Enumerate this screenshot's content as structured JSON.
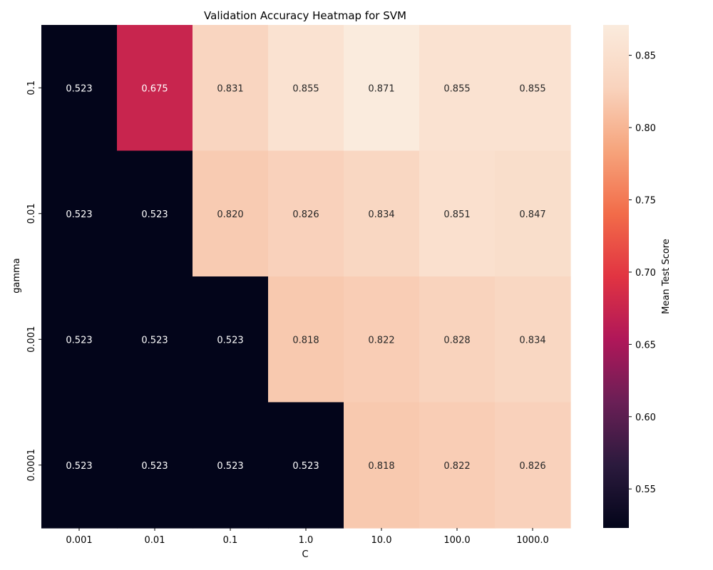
{
  "chart_data": {
    "type": "heatmap",
    "title": "Validation Accuracy Heatmap for SVM",
    "xlabel": "C",
    "ylabel": "gamma",
    "x_categories": [
      "0.001",
      "0.01",
      "0.1",
      "1.0",
      "10.0",
      "100.0",
      "1000.0"
    ],
    "y_categories": [
      "0.1",
      "0.01",
      "0.001",
      "0.0001"
    ],
    "values": [
      [
        0.523,
        0.675,
        0.831,
        0.855,
        0.871,
        0.855,
        0.855
      ],
      [
        0.523,
        0.523,
        0.82,
        0.826,
        0.834,
        0.851,
        0.847
      ],
      [
        0.523,
        0.523,
        0.523,
        0.818,
        0.822,
        0.828,
        0.834
      ],
      [
        0.523,
        0.523,
        0.523,
        0.523,
        0.818,
        0.822,
        0.826
      ]
    ],
    "value_labels": [
      [
        "0.523",
        "0.675",
        "0.831",
        "0.855",
        "0.871",
        "0.855",
        "0.855"
      ],
      [
        "0.523",
        "0.523",
        "0.820",
        "0.826",
        "0.834",
        "0.851",
        "0.847"
      ],
      [
        "0.523",
        "0.523",
        "0.523",
        "0.818",
        "0.822",
        "0.828",
        "0.834"
      ],
      [
        "0.523",
        "0.523",
        "0.523",
        "0.523",
        "0.818",
        "0.822",
        "0.826"
      ]
    ],
    "colorbar": {
      "label": "Mean Test Score",
      "range": [
        0.523,
        0.871
      ],
      "ticks": [
        "0.55",
        "0.60",
        "0.65",
        "0.70",
        "0.75",
        "0.80",
        "0.85"
      ],
      "colormap": "rocket",
      "colormap_stops": [
        "#03051a",
        "#2b1a3d",
        "#6a1f56",
        "#b01759",
        "#e13442",
        "#f26c49",
        "#f6a47c",
        "#f9d3bd",
        "#faebdd"
      ]
    }
  }
}
